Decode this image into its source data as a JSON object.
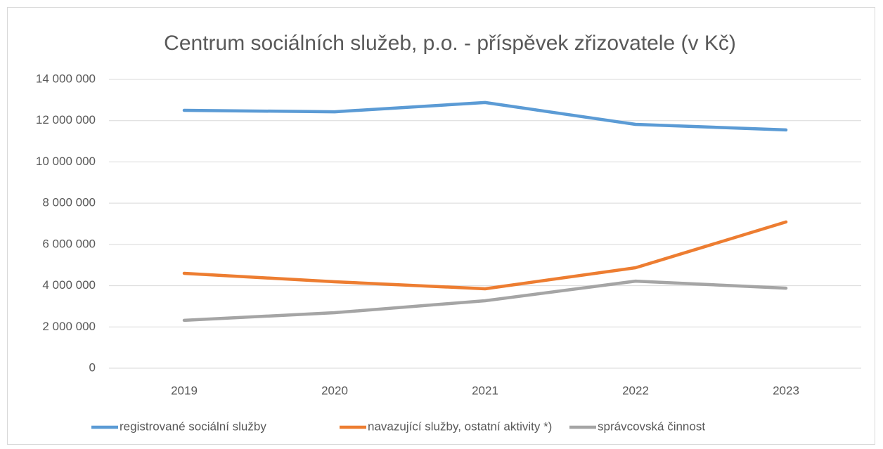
{
  "chart_data": {
    "type": "line",
    "title": "Centrum sociálních služeb, p.o. - příspěvek zřizovatele (v Kč)",
    "categories": [
      "2019",
      "2020",
      "2021",
      "2022",
      "2023"
    ],
    "series": [
      {
        "name": "registrované sociální služby",
        "color": "#5b9bd5",
        "values": [
          12500000,
          12430000,
          12880000,
          11820000,
          11550000
        ]
      },
      {
        "name": "navazující služby, ostatní aktivity *)",
        "color": "#ed7d31",
        "values": [
          4600000,
          4190000,
          3850000,
          4870000,
          7090000
        ]
      },
      {
        "name": "správcovská činnost",
        "color": "#a5a5a5",
        "values": [
          2320000,
          2690000,
          3270000,
          4220000,
          3880000
        ]
      }
    ],
    "ylim": [
      0,
      14000000
    ],
    "yticks": [
      0,
      {
        "value": 2000000,
        "label": "2 000 000"
      },
      {
        "value": 4000000,
        "label": "4 000 000"
      },
      {
        "value": 6000000,
        "label": "6 000 000"
      },
      {
        "value": 8000000,
        "label": "8 000 000"
      },
      {
        "value": 10000000,
        "label": "10 000 000"
      },
      {
        "value": 12000000,
        "label": "12 000 000"
      },
      {
        "value": 14000000,
        "label": "14 000 000"
      }
    ],
    "grid": true,
    "legend": "bottom"
  }
}
